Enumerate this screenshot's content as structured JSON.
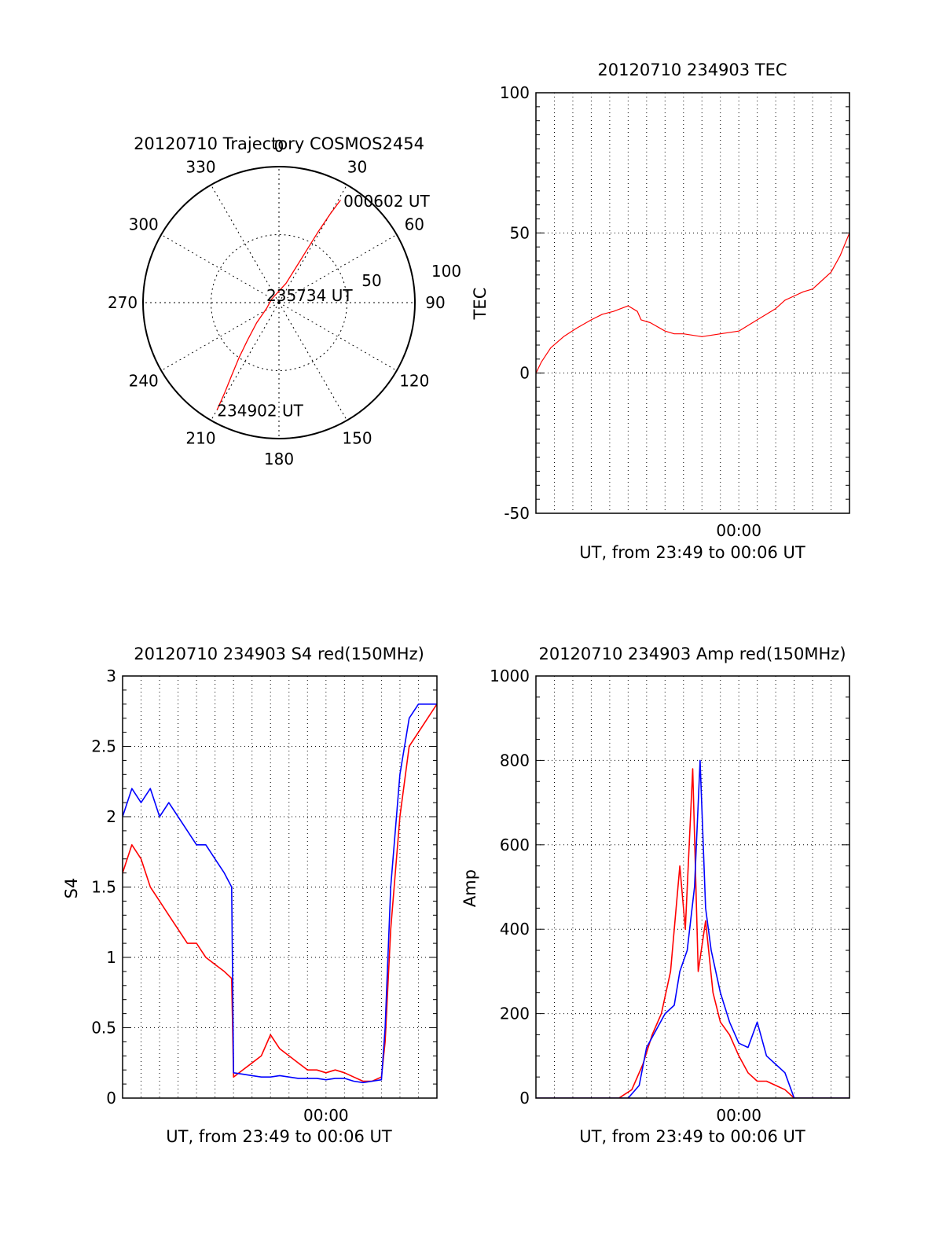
{
  "colors": {
    "red": "#ff0000",
    "blue": "#0000ff",
    "axis": "#000000",
    "grid": "#000000"
  },
  "chart_data": [
    {
      "id": "polar",
      "type": "polar-trajectory",
      "title": "20120710 Trajectory COSMOS2454",
      "azimuth_labels": [
        "0",
        "30",
        "60",
        "90",
        "120",
        "150",
        "180",
        "210",
        "240",
        "270",
        "300",
        "330"
      ],
      "ring_labels": [
        "50",
        "100"
      ],
      "grid": true,
      "track": {
        "color": "#ff0000",
        "points": [
          {
            "az": 210,
            "r": 91
          },
          {
            "az": 211,
            "r": 78
          },
          {
            "az": 213,
            "r": 64
          },
          {
            "az": 216,
            "r": 50
          },
          {
            "az": 220,
            "r": 36
          },
          {
            "az": 228,
            "r": 22
          },
          {
            "az": 245,
            "r": 10
          },
          {
            "az": 295,
            "r": 6
          },
          {
            "az": 20,
            "r": 15
          },
          {
            "az": 26,
            "r": 30
          },
          {
            "az": 28,
            "r": 45
          },
          {
            "az": 29,
            "r": 60
          },
          {
            "az": 30,
            "r": 75
          },
          {
            "az": 31,
            "r": 88
          }
        ]
      },
      "annotations": [
        {
          "text": "000602 UT",
          "az": 30,
          "r": 88
        },
        {
          "text": "235734 UT",
          "az": 0,
          "r": 0
        },
        {
          "text": "234902 UT",
          "az": 210,
          "r": 91
        }
      ]
    },
    {
      "id": "tec",
      "type": "line",
      "title": "20120710 234903 TEC",
      "ylabel": "TEC",
      "xlabel": "UT, from 23:49 to 00:06 UT",
      "xlim": [
        0,
        17
      ],
      "ylim": [
        -50,
        100
      ],
      "yticks": [
        -50,
        0,
        50,
        100
      ],
      "xticks": [
        {
          "value": 11,
          "label": "00:00"
        }
      ],
      "grid": true,
      "series": [
        {
          "color": "#ff0000",
          "x": [
            0,
            0.3,
            0.8,
            1.5,
            2.2,
            3.0,
            3.6,
            4.2,
            5.0,
            5.5,
            5.7,
            6.2,
            7.0,
            7.5,
            8.0,
            9.0,
            10.0,
            11.0,
            12.0,
            13.0,
            13.5,
            14.5,
            15.0,
            15.5,
            16.0,
            16.5,
            17.0
          ],
          "y": [
            0,
            4,
            9,
            13,
            16,
            19,
            21,
            22,
            24,
            22,
            19,
            18,
            15,
            14,
            14,
            13,
            14,
            15,
            19,
            23,
            26,
            29,
            30,
            33,
            36,
            42,
            50
          ]
        }
      ]
    },
    {
      "id": "s4",
      "type": "line",
      "title": "20120710 234903 S4 red(150MHz)",
      "ylabel": "S4",
      "xlabel": "UT, from 23:49 to 00:06 UT",
      "xlim": [
        0,
        17
      ],
      "ylim": [
        0,
        3
      ],
      "yticks": [
        0,
        0.5,
        1,
        1.5,
        2,
        2.5,
        3
      ],
      "xticks": [
        {
          "value": 11,
          "label": "00:00"
        }
      ],
      "grid": true,
      "series": [
        {
          "color": "#ff0000",
          "x": [
            0,
            0.5,
            1.0,
            1.5,
            2.0,
            2.5,
            3.0,
            3.5,
            4.0,
            4.5,
            5.0,
            5.5,
            5.9,
            6.0,
            6.5,
            7.0,
            7.5,
            8.0,
            8.5,
            9.0,
            9.5,
            10.0,
            10.5,
            11.0,
            11.5,
            12.0,
            12.5,
            13.0,
            13.5,
            14.0,
            14.2,
            14.5,
            15.0,
            15.5,
            16.0,
            16.5,
            17.0
          ],
          "y": [
            1.6,
            1.8,
            1.7,
            1.5,
            1.4,
            1.3,
            1.2,
            1.1,
            1.1,
            1.0,
            0.95,
            0.9,
            0.85,
            0.15,
            0.2,
            0.25,
            0.3,
            0.45,
            0.35,
            0.3,
            0.25,
            0.2,
            0.2,
            0.18,
            0.2,
            0.18,
            0.15,
            0.12,
            0.12,
            0.15,
            0.4,
            1.2,
            2.0,
            2.5,
            2.6,
            2.7,
            2.8
          ]
        },
        {
          "color": "#0000ff",
          "x": [
            0,
            0.5,
            1.0,
            1.5,
            2.0,
            2.5,
            3.0,
            3.5,
            4.0,
            4.5,
            5.0,
            5.5,
            5.9,
            6.0,
            6.5,
            7.0,
            7.5,
            8.0,
            8.5,
            9.0,
            9.5,
            10.0,
            10.5,
            11.0,
            11.5,
            12.0,
            12.5,
            13.0,
            13.5,
            14.0,
            14.2,
            14.5,
            15.0,
            15.5,
            16.0,
            16.5,
            17.0
          ],
          "y": [
            2.0,
            2.2,
            2.1,
            2.2,
            2.0,
            2.1,
            2.0,
            1.9,
            1.8,
            1.8,
            1.7,
            1.6,
            1.5,
            0.18,
            0.17,
            0.16,
            0.15,
            0.15,
            0.16,
            0.15,
            0.14,
            0.14,
            0.14,
            0.13,
            0.14,
            0.14,
            0.12,
            0.11,
            0.12,
            0.13,
            0.5,
            1.5,
            2.3,
            2.7,
            2.8,
            2.8,
            2.8
          ]
        }
      ]
    },
    {
      "id": "amp",
      "type": "line",
      "title": "20120710 234903 Amp red(150MHz)",
      "ylabel": "Amp",
      "xlabel": "UT, from 23:49 to 00:06 UT",
      "xlim": [
        0,
        17
      ],
      "ylim": [
        0,
        1000
      ],
      "yticks": [
        0,
        200,
        400,
        600,
        800,
        1000
      ],
      "xticks": [
        {
          "value": 11,
          "label": "00:00"
        }
      ],
      "grid": true,
      "series": [
        {
          "color": "#ff0000",
          "x": [
            0,
            4.5,
            5.2,
            5.8,
            6.3,
            6.8,
            7.3,
            7.8,
            8.1,
            8.5,
            8.8,
            9.2,
            9.6,
            10.0,
            10.5,
            11.0,
            11.5,
            12.0,
            12.5,
            13.0,
            13.5,
            14.0,
            17.0
          ],
          "y": [
            0,
            0,
            20,
            80,
            150,
            200,
            300,
            550,
            400,
            780,
            300,
            420,
            250,
            180,
            150,
            100,
            60,
            40,
            40,
            30,
            20,
            0,
            0
          ]
        },
        {
          "color": "#0000ff",
          "x": [
            0,
            5.0,
            5.6,
            6.0,
            6.5,
            7.0,
            7.5,
            7.8,
            8.2,
            8.6,
            8.9,
            9.2,
            9.5,
            10.0,
            10.5,
            11.0,
            11.5,
            12.0,
            12.5,
            13.0,
            13.5,
            14.0,
            17.0
          ],
          "y": [
            0,
            0,
            30,
            120,
            160,
            200,
            220,
            300,
            350,
            500,
            800,
            450,
            350,
            250,
            180,
            130,
            120,
            180,
            100,
            80,
            60,
            0,
            0
          ]
        }
      ]
    }
  ]
}
